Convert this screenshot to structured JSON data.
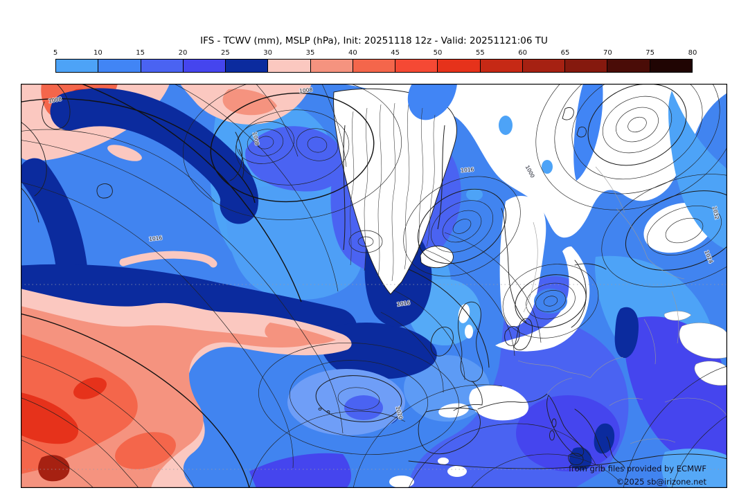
{
  "header": {
    "title": "IFS - TCWV (mm), MSLP (hPa), Init: 20251118 12z - Valid: 20251121:06 TU"
  },
  "colorbar": {
    "ticks": [
      "5",
      "10",
      "15",
      "20",
      "25",
      "30",
      "35",
      "40",
      "45",
      "50",
      "55",
      "60",
      "65",
      "70",
      "75",
      "80"
    ],
    "segments": [
      {
        "from": 5,
        "to": 10,
        "color": "#4da3f7"
      },
      {
        "from": 10,
        "to": 15,
        "color": "#4185f5"
      },
      {
        "from": 15,
        "to": 20,
        "color": "#4a63f2"
      },
      {
        "from": 20,
        "to": 25,
        "color": "#4545ee"
      },
      {
        "from": 25,
        "to": 30,
        "color": "#0b2b9e"
      },
      {
        "from": 30,
        "to": 35,
        "color": "#fbc8c0"
      },
      {
        "from": 35,
        "to": 40,
        "color": "#f5937f"
      },
      {
        "from": 40,
        "to": 45,
        "color": "#f4664b"
      },
      {
        "from": 45,
        "to": 50,
        "color": "#f54934"
      },
      {
        "from": 50,
        "to": 55,
        "color": "#e6321b"
      },
      {
        "from": 55,
        "to": 60,
        "color": "#c62915"
      },
      {
        "from": 60,
        "to": 65,
        "color": "#a62112"
      },
      {
        "from": 65,
        "to": 70,
        "color": "#85190e"
      },
      {
        "from": 70,
        "to": 75,
        "color": "#4a0c07"
      },
      {
        "from": 75,
        "to": 80,
        "color": "#200503"
      }
    ]
  },
  "map": {
    "contour_labels": [
      {
        "text": "1008"
      },
      {
        "text": "1016"
      },
      {
        "text": "1016"
      },
      {
        "text": "1000"
      },
      {
        "text": "1032"
      },
      {
        "text": "1024"
      },
      {
        "text": "1016"
      },
      {
        "text": "1020"
      },
      {
        "text": "1008"
      },
      {
        "text": "1008"
      }
    ],
    "attribution": {
      "line1": "from grib files provided by ECMWF",
      "line2": "©2025 sb@irizone.net"
    }
  }
}
